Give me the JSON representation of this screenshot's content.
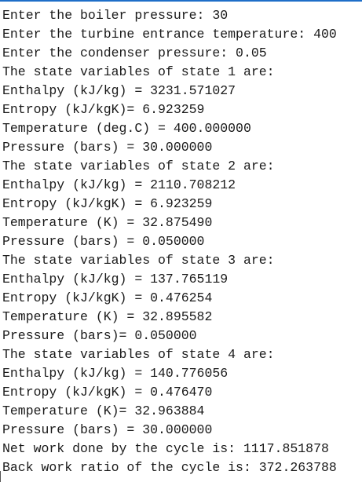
{
  "lines": [
    "Enter the boiler pressure: 30",
    "Enter the turbine entrance temperature: 400",
    "Enter the condenser pressure: 0.05",
    "The state variables of state 1 are:",
    "Enthalpy (kJ/kg) = 3231.571027",
    "Entropy (kJ/kgK)= 6.923259",
    "Temperature (deg.C) = 400.000000",
    "Pressure (bars) = 30.000000",
    "The state variables of state 2 are:",
    "Enthalpy (kJ/kg) = 2110.708212",
    "Entropy (kJ/kgK) = 6.923259",
    "Temperature (K) = 32.875490",
    "Pressure (bars) = 0.050000",
    "The state variables of state 3 are:",
    "Enthalpy (kJ/kg) = 137.765119",
    "Entropy (kJ/kgK) = 0.476254",
    "Temperature (K) = 32.895582",
    "Pressure (bars)= 0.050000",
    "The state variables of state 4 are:",
    "Enthalpy (kJ/kg) = 140.776056",
    "Entropy (kJ/kgK) = 0.476470",
    "Temperature (K)= 32.963884",
    "Pressure (bars) = 30.000000",
    "Net work done by the cycle is: 1117.851878",
    "Back work ratio of the cycle is: 372.263788"
  ]
}
